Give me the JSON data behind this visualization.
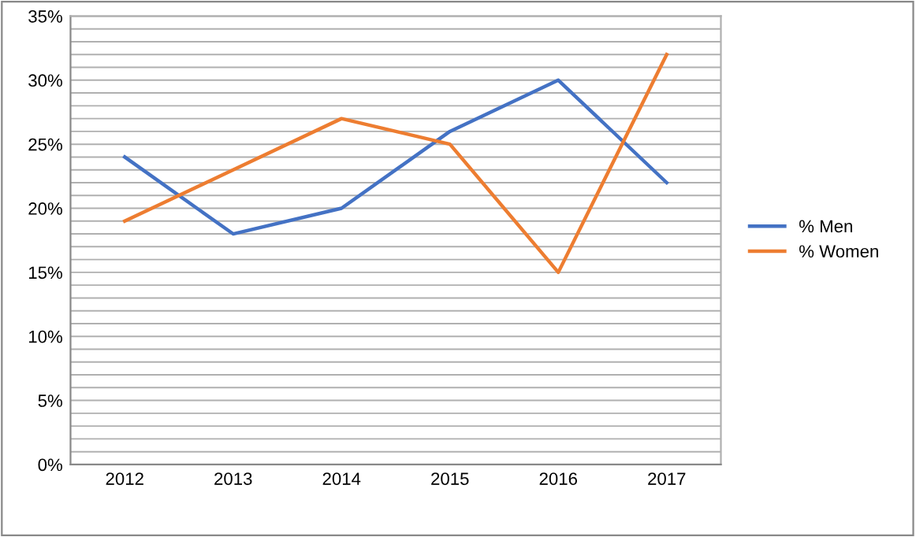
{
  "chart_data": {
    "type": "line",
    "categories": [
      "2012",
      "2013",
      "2014",
      "2015",
      "2016",
      "2017"
    ],
    "series": [
      {
        "name": "% Men",
        "color": "#4472c4",
        "values": [
          24,
          18,
          20,
          26,
          30,
          22
        ]
      },
      {
        "name": "% Women",
        "color": "#ed7d31",
        "values": [
          19,
          23,
          27,
          25,
          15,
          32
        ]
      }
    ],
    "ylim": [
      0,
      35
    ],
    "yticks": [
      {
        "value": 0,
        "label": "0%"
      },
      {
        "value": 1,
        "label": null
      },
      {
        "value": 2,
        "label": null
      },
      {
        "value": 3,
        "label": null
      },
      {
        "value": 4,
        "label": null
      },
      {
        "value": 5,
        "label": "5%"
      },
      {
        "value": 6,
        "label": null
      },
      {
        "value": 7,
        "label": null
      },
      {
        "value": 8,
        "label": null
      },
      {
        "value": 9,
        "label": null
      },
      {
        "value": 10,
        "label": "10%"
      },
      {
        "value": 11,
        "label": null
      },
      {
        "value": 12,
        "label": null
      },
      {
        "value": 13,
        "label": null
      },
      {
        "value": 14,
        "label": null
      },
      {
        "value": 15,
        "label": "15%"
      },
      {
        "value": 16,
        "label": null
      },
      {
        "value": 17,
        "label": null
      },
      {
        "value": 18,
        "label": null
      },
      {
        "value": 19,
        "label": null
      },
      {
        "value": 20,
        "label": "20%"
      },
      {
        "value": 21,
        "label": null
      },
      {
        "value": 22,
        "label": null
      },
      {
        "value": 23,
        "label": null
      },
      {
        "value": 24,
        "label": null
      },
      {
        "value": 25,
        "label": "25%"
      },
      {
        "value": 26,
        "label": null
      },
      {
        "value": 27,
        "label": null
      },
      {
        "value": 28,
        "label": null
      },
      {
        "value": 29,
        "label": null
      },
      {
        "value": 30,
        "label": "30%"
      },
      {
        "value": 31,
        "label": null
      },
      {
        "value": 32,
        "label": null
      },
      {
        "value": 33,
        "label": null
      },
      {
        "value": 34,
        "label": null
      },
      {
        "value": 35,
        "label": "35%"
      }
    ],
    "grid": "y",
    "legend": "right",
    "marker": "none",
    "line_style": "solid"
  }
}
